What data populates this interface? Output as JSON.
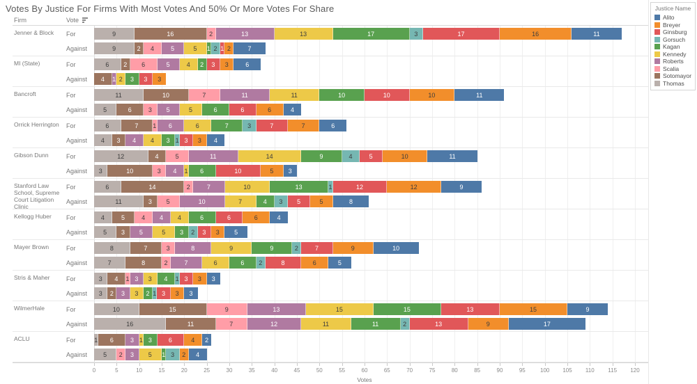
{
  "title": "Votes By Justice For Firms With Most Votes And 50% Or More Votes For Share",
  "table_headers": {
    "firm": "Firm",
    "vote": "Vote"
  },
  "vote_labels": {
    "for": "For",
    "against": "Against"
  },
  "icons": {
    "sort": "sort-descending-icon"
  },
  "legend": {
    "title": "Justice Name",
    "items": [
      "Alito",
      "Breyer",
      "Ginsburg",
      "Gorsuch",
      "Kagan",
      "Kennedy",
      "Roberts",
      "Scalia",
      "Sotomayor",
      "Thomas"
    ]
  },
  "chart_data": {
    "type": "bar",
    "stacked": true,
    "orientation": "horizontal",
    "title": "Votes By Justice For Firms With Most Votes And 50% Or More Votes For Share",
    "xlabel": "Votes",
    "xlim": [
      0,
      120
    ],
    "tick_step": 5,
    "grid": true,
    "legend_position": "right",
    "stack_order": [
      "Thomas",
      "Sotomayor",
      "Scalia",
      "Roberts",
      "Kennedy",
      "Kagan",
      "Gorsuch",
      "Ginsburg",
      "Breyer",
      "Alito"
    ],
    "colors": {
      "Alito": "#4e79a7",
      "Breyer": "#f28e2b",
      "Ginsburg": "#e15759",
      "Gorsuch": "#76b7b2",
      "Kagan": "#59a14f",
      "Kennedy": "#edc948",
      "Roberts": "#b07aa1",
      "Scalia": "#ff9da7",
      "Sotomayor": "#9c755f",
      "Thomas": "#bab0ac"
    },
    "dark_label_justices": [
      "Thomas",
      "Scalia",
      "Kennedy",
      "Gorsuch",
      "Breyer"
    ],
    "firms": [
      {
        "name": "Jenner & Block",
        "for": {
          "Thomas": 9,
          "Sotomayor": 16,
          "Scalia": 2,
          "Roberts": 13,
          "Kennedy": 13,
          "Kagan": 17,
          "Gorsuch": 3,
          "Ginsburg": 17,
          "Breyer": 16,
          "Alito": 11
        },
        "against": {
          "Thomas": 9,
          "Sotomayor": 2,
          "Scalia": 4,
          "Roberts": 5,
          "Kennedy": 5,
          "Kagan": 1,
          "Gorsuch": 2,
          "Ginsburg": 1,
          "Breyer": 2,
          "Alito": 7
        }
      },
      {
        "name": "MI (State)",
        "for": {
          "Thomas": 6,
          "Sotomayor": 2,
          "Scalia": 6,
          "Roberts": 5,
          "Kennedy": 4,
          "Kagan": 2,
          "Ginsburg": 3,
          "Breyer": 3,
          "Alito": 6
        },
        "against": {
          "Sotomayor": 4,
          "Roberts": 1,
          "Kennedy": 2,
          "Kagan": 3,
          "Ginsburg": 3,
          "Breyer": 3
        }
      },
      {
        "name": "Bancroft",
        "for": {
          "Thomas": 11,
          "Sotomayor": 10,
          "Scalia": 7,
          "Roberts": 11,
          "Kennedy": 11,
          "Kagan": 10,
          "Ginsburg": 10,
          "Breyer": 10,
          "Alito": 11
        },
        "against": {
          "Thomas": 5,
          "Sotomayor": 6,
          "Scalia": 3,
          "Roberts": 5,
          "Kennedy": 5,
          "Kagan": 6,
          "Ginsburg": 6,
          "Breyer": 6,
          "Alito": 4
        }
      },
      {
        "name": "Orrick Herrington",
        "for": {
          "Thomas": 6,
          "Sotomayor": 7,
          "Scalia": 1,
          "Roberts": 6,
          "Kennedy": 6,
          "Kagan": 7,
          "Gorsuch": 3,
          "Ginsburg": 7,
          "Breyer": 7,
          "Alito": 6
        },
        "against": {
          "Thomas": 4,
          "Sotomayor": 3,
          "Roberts": 4,
          "Kennedy": 4,
          "Kagan": 3,
          "Gorsuch": 1,
          "Ginsburg": 3,
          "Breyer": 3,
          "Alito": 4
        }
      },
      {
        "name": "Gibson Dunn",
        "for": {
          "Thomas": 12,
          "Sotomayor": 4,
          "Scalia": 5,
          "Roberts": 11,
          "Kennedy": 14,
          "Kagan": 9,
          "Gorsuch": 4,
          "Ginsburg": 5,
          "Breyer": 10,
          "Alito": 11
        },
        "against": {
          "Thomas": 3,
          "Sotomayor": 10,
          "Scalia": 3,
          "Roberts": 4,
          "Kennedy": 1,
          "Kagan": 6,
          "Ginsburg": 10,
          "Breyer": 5,
          "Alito": 3
        }
      },
      {
        "name": "Stanford Law School, Supreme Court Litigation Clinic",
        "for": {
          "Thomas": 6,
          "Sotomayor": 14,
          "Scalia": 2,
          "Roberts": 7,
          "Kennedy": 10,
          "Kagan": 13,
          "Gorsuch": 1,
          "Ginsburg": 12,
          "Breyer": 12,
          "Alito": 9
        },
        "against": {
          "Thomas": 11,
          "Sotomayor": 3,
          "Scalia": 5,
          "Roberts": 10,
          "Kennedy": 7,
          "Kagan": 4,
          "Gorsuch": 3,
          "Ginsburg": 5,
          "Breyer": 5,
          "Alito": 8
        }
      },
      {
        "name": "Kellogg Huber",
        "for": {
          "Thomas": 4,
          "Sotomayor": 5,
          "Scalia": 4,
          "Roberts": 4,
          "Kennedy": 4,
          "Kagan": 6,
          "Ginsburg": 6,
          "Breyer": 6,
          "Alito": 4
        },
        "against": {
          "Thomas": 5,
          "Sotomayor": 3,
          "Roberts": 5,
          "Kennedy": 5,
          "Kagan": 3,
          "Gorsuch": 2,
          "Ginsburg": 3,
          "Breyer": 3,
          "Alito": 5
        }
      },
      {
        "name": "Mayer Brown",
        "for": {
          "Thomas": 8,
          "Sotomayor": 7,
          "Scalia": 3,
          "Roberts": 8,
          "Kennedy": 9,
          "Kagan": 9,
          "Gorsuch": 2,
          "Ginsburg": 7,
          "Breyer": 9,
          "Alito": 10
        },
        "against": {
          "Thomas": 7,
          "Sotomayor": 8,
          "Scalia": 2,
          "Roberts": 7,
          "Kennedy": 6,
          "Kagan": 6,
          "Gorsuch": 2,
          "Ginsburg": 8,
          "Breyer": 6,
          "Alito": 5
        }
      },
      {
        "name": "Stris & Maher",
        "for": {
          "Thomas": 3,
          "Sotomayor": 4,
          "Scalia": 1,
          "Roberts": 3,
          "Kennedy": 3,
          "Kagan": 4,
          "Gorsuch": 1,
          "Ginsburg": 3,
          "Breyer": 3,
          "Alito": 3
        },
        "against": {
          "Thomas": 3,
          "Sotomayor": 2,
          "Roberts": 3,
          "Kennedy": 3,
          "Kagan": 2,
          "Gorsuch": 1,
          "Ginsburg": 3,
          "Breyer": 3,
          "Alito": 3
        }
      },
      {
        "name": "WilmerHale",
        "for": {
          "Thomas": 10,
          "Sotomayor": 15,
          "Scalia": 9,
          "Roberts": 13,
          "Kennedy": 15,
          "Kagan": 15,
          "Ginsburg": 13,
          "Breyer": 15,
          "Alito": 9
        },
        "against": {
          "Thomas": 16,
          "Sotomayor": 11,
          "Scalia": 7,
          "Roberts": 12,
          "Kennedy": 11,
          "Kagan": 11,
          "Gorsuch": 2,
          "Ginsburg": 13,
          "Breyer": 9,
          "Alito": 17
        }
      },
      {
        "name": "ACLU",
        "for": {
          "Thomas": 1,
          "Sotomayor": 6,
          "Roberts": 3,
          "Kennedy": 1,
          "Kagan": 3,
          "Ginsburg": 6,
          "Breyer": 4,
          "Alito": 2
        },
        "against": {
          "Thomas": 5,
          "Scalia": 2,
          "Roberts": 3,
          "Kennedy": 5,
          "Kagan": 1,
          "Gorsuch": 3,
          "Breyer": 2,
          "Alito": 4
        }
      }
    ]
  }
}
